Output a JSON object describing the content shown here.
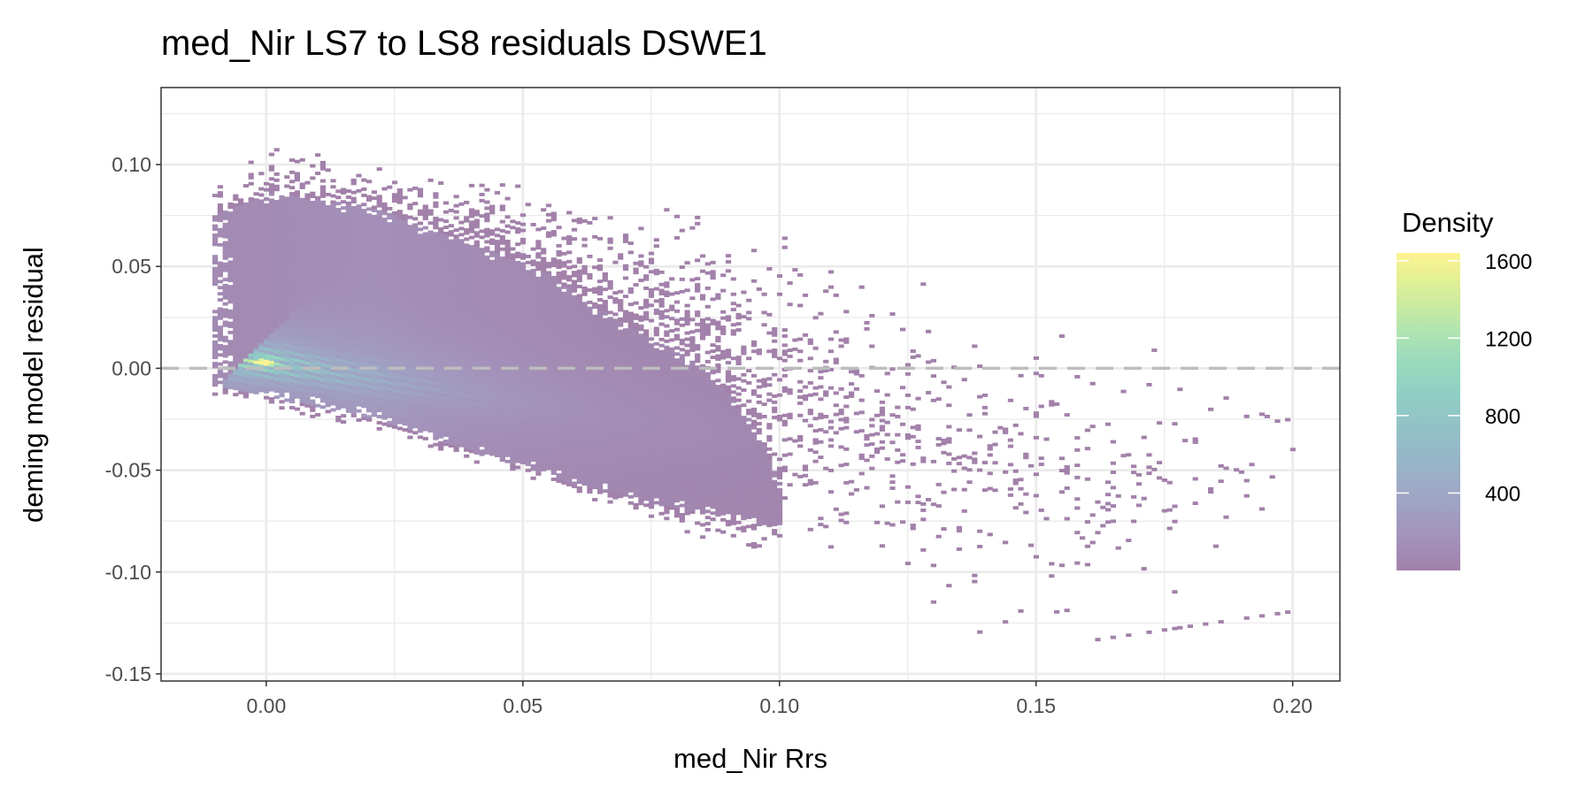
{
  "chart_data": {
    "type": "heatmap",
    "subtype": "2d-binned-density",
    "title": "med_Nir LS7 to LS8 residuals DSWE1",
    "xlabel": "med_Nir Rrs",
    "ylabel": "deming model residual",
    "xlim": [
      -0.0205,
      0.2092
    ],
    "ylim": [
      -0.1535,
      0.1378
    ],
    "x_ticks": [
      0.0,
      0.05,
      0.1,
      0.15,
      0.2
    ],
    "x_tick_labels": [
      "0.00",
      "0.05",
      "0.10",
      "0.15",
      "0.20"
    ],
    "x_minor": [
      0.025,
      0.075,
      0.125,
      0.175
    ],
    "y_ticks": [
      0.1,
      0.05,
      0.0,
      -0.05,
      -0.1,
      -0.15
    ],
    "y_tick_labels": [
      "0.10",
      "0.05",
      "0.00",
      "-0.05",
      "-0.10",
      "-0.15"
    ],
    "y_minor": [
      0.125,
      0.075,
      0.025,
      -0.025,
      -0.075,
      -0.125
    ],
    "grid": true,
    "reference_line": {
      "y": 0,
      "style": "dashed",
      "color": "#bdbdbd"
    },
    "bin_size": {
      "x": 0.001,
      "y": 0.0015
    },
    "random_seed": 7,
    "density_core": {
      "upper": [
        [
          -0.01,
          0.075
        ],
        [
          0.0,
          0.085
        ],
        [
          0.02,
          0.078
        ],
        [
          0.04,
          0.06
        ],
        [
          0.055,
          0.045
        ],
        [
          0.063,
          0.03
        ],
        [
          0.07,
          0.02
        ],
        [
          0.085,
          0.0
        ],
        [
          0.095,
          -0.03
        ],
        [
          0.1,
          -0.06
        ]
      ],
      "lower": [
        [
          -0.01,
          -0.01
        ],
        [
          0.0,
          -0.015
        ],
        [
          0.02,
          -0.025
        ],
        [
          0.04,
          -0.042
        ],
        [
          0.06,
          -0.058
        ],
        [
          0.08,
          -0.07
        ],
        [
          0.1,
          -0.08
        ]
      ]
    },
    "density_envelope": {
      "upper": [
        [
          -0.01,
          0.09
        ],
        [
          0.0,
          0.11
        ],
        [
          0.03,
          0.1
        ],
        [
          0.07,
          0.085
        ],
        [
          0.1,
          0.07
        ],
        [
          0.14,
          0.04
        ],
        [
          0.17,
          0.02
        ],
        [
          0.2,
          0.005
        ]
      ],
      "lower": [
        [
          -0.01,
          -0.015
        ],
        [
          0.0,
          -0.02
        ],
        [
          0.05,
          -0.055
        ],
        [
          0.09,
          -0.09
        ],
        [
          0.12,
          -0.12
        ],
        [
          0.145,
          -0.14
        ],
        [
          0.2,
          -0.12
        ]
      ]
    },
    "peak": {
      "x": -0.001,
      "y": 0.002,
      "density": 1600,
      "ridge_slope": -0.4
    },
    "legend": {
      "title": "Density",
      "placement": "right",
      "range": [
        0,
        1640
      ],
      "breaks": [
        400,
        800,
        1200,
        1600
      ],
      "labels": [
        "400",
        "800",
        "1200",
        "1600"
      ],
      "palette": [
        "#440154",
        "#482878",
        "#3e4989",
        "#31688e",
        "#26828e",
        "#1f9e89",
        "#35b779",
        "#6ece58",
        "#b5de2b",
        "#fde725"
      ],
      "alpha": 0.5
    }
  }
}
